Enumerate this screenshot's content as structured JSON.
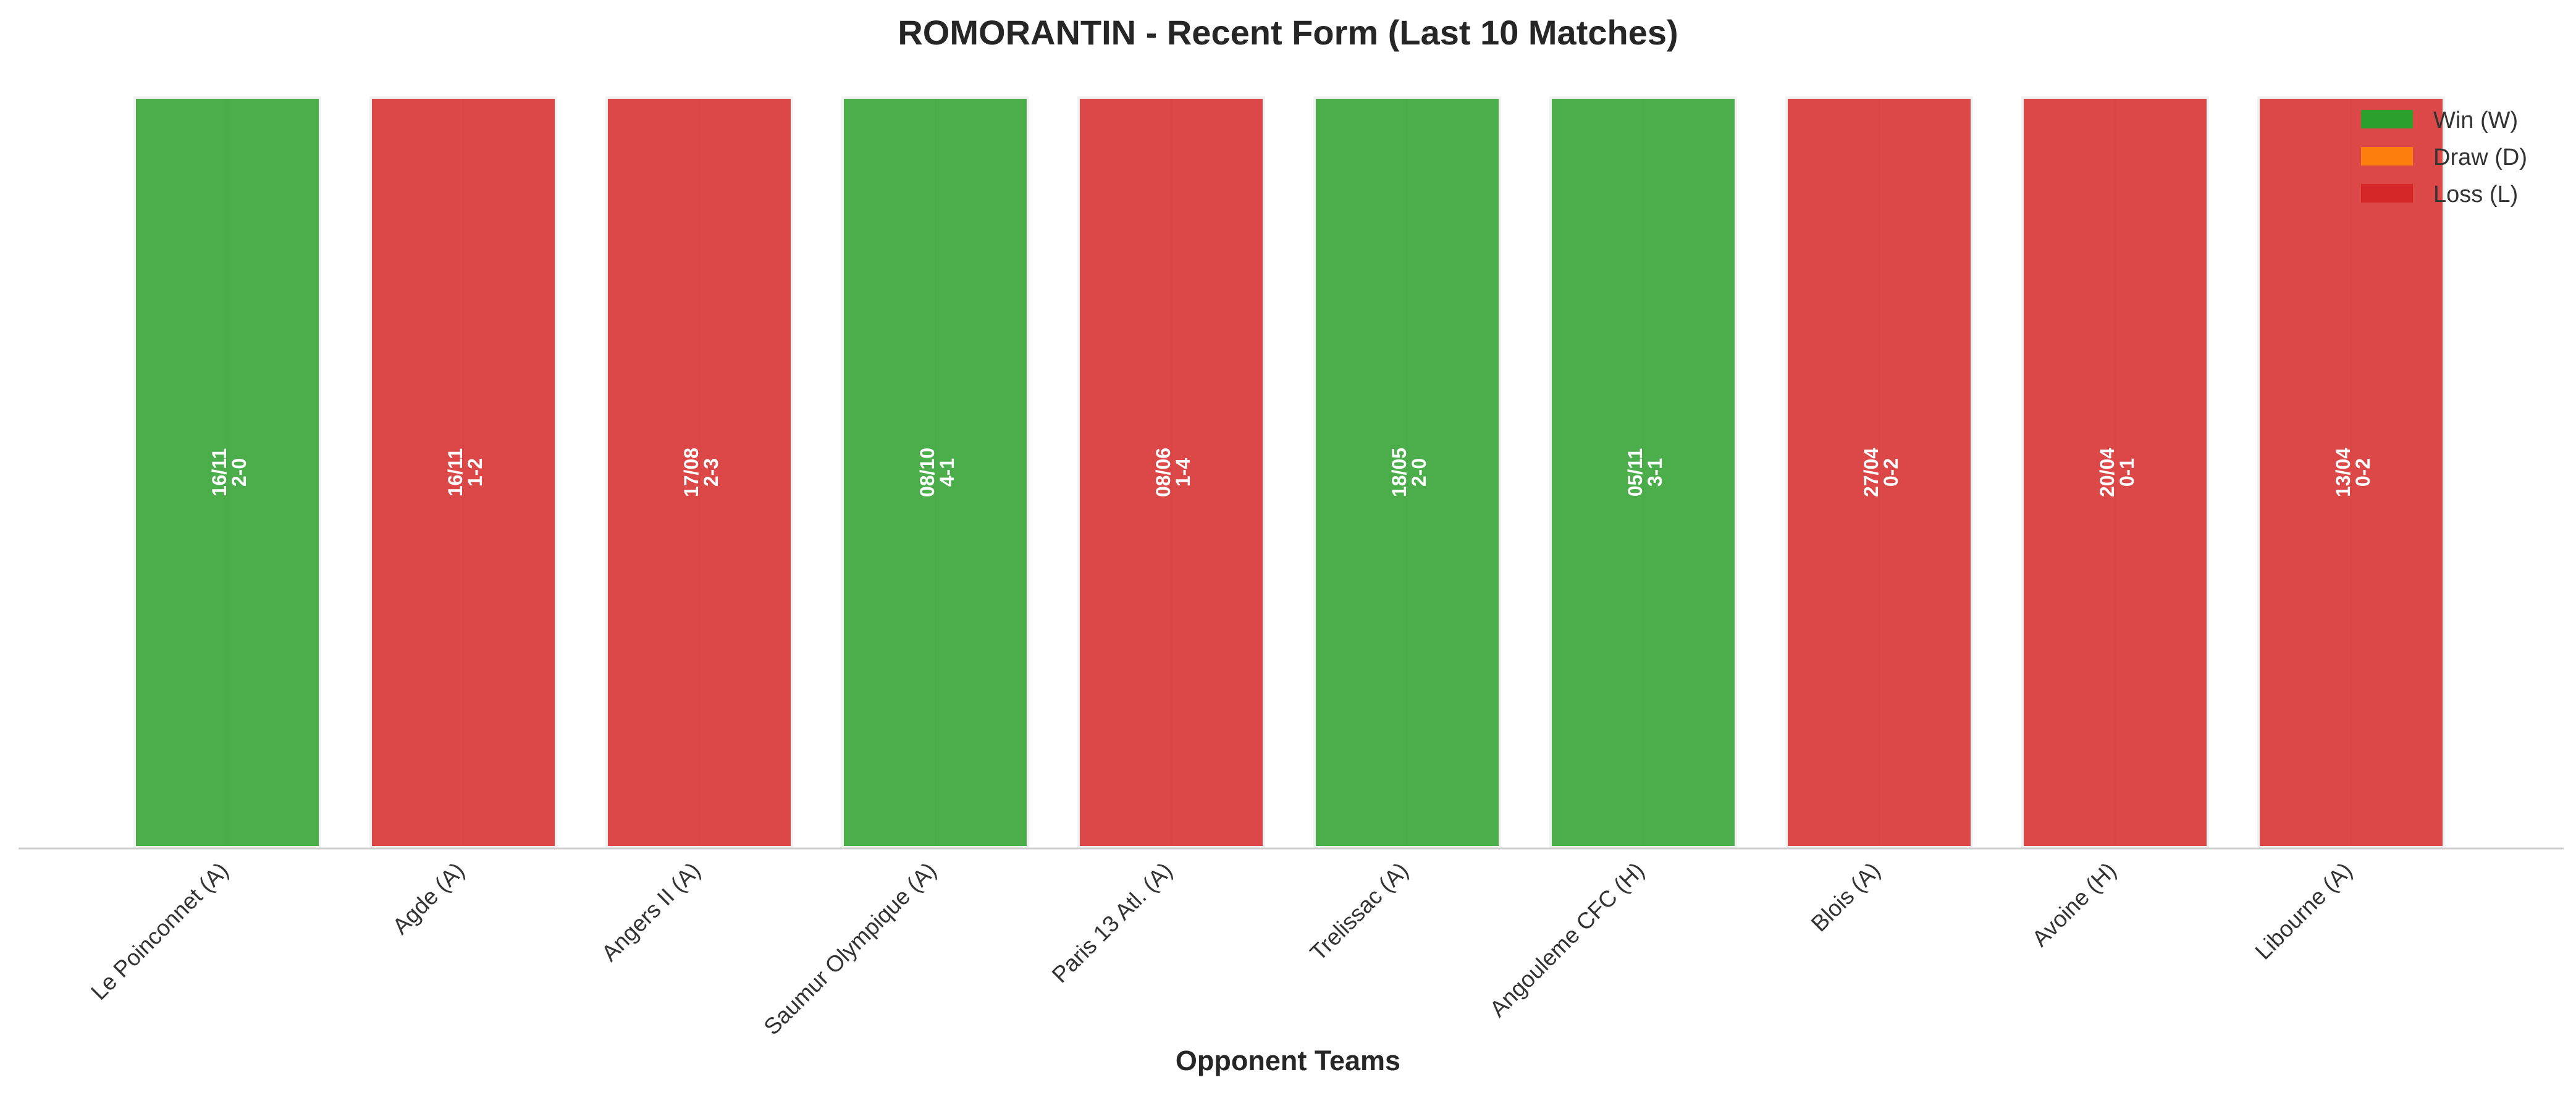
{
  "chart_data": {
    "type": "bar",
    "title": "ROMORANTIN - Recent Form (Last 10 Matches)",
    "xlabel": "Opponent Teams",
    "ylabel": "",
    "grid": "vertical lines only (faint)",
    "legend_position": "top-right",
    "colors": {
      "W": "#2ca02c",
      "D": "#ff7f0e",
      "L": "#d62728"
    },
    "legend": [
      {
        "key": "W",
        "label": "Win (W)"
      },
      {
        "key": "D",
        "label": "Draw (D)"
      },
      {
        "key": "L",
        "label": "Loss (L)"
      }
    ],
    "categories": [
      "Le Poinconnet (A)",
      "Agde (A)",
      "Angers II (A)",
      "Saumur Olympique (A)",
      "Paris 13 Atl. (A)",
      "Trelissac (A)",
      "Angouleme CFC (H)",
      "Blois (A)",
      "Avoine (H)",
      "Libourne (A)"
    ],
    "matches": [
      {
        "opponent": "Le Poinconnet (A)",
        "result": "W",
        "date": "16/11",
        "score": "2-0"
      },
      {
        "opponent": "Agde (A)",
        "result": "L",
        "date": "16/11",
        "score": "1-2"
      },
      {
        "opponent": "Angers II (A)",
        "result": "L",
        "date": "17/08",
        "score": "2-3"
      },
      {
        "opponent": "Saumur Olympique (A)",
        "result": "W",
        "date": "08/10",
        "score": "4-1"
      },
      {
        "opponent": "Paris 13 Atl. (A)",
        "result": "L",
        "date": "08/06",
        "score": "1-4"
      },
      {
        "opponent": "Trelissac (A)",
        "result": "W",
        "date": "18/05",
        "score": "2-0"
      },
      {
        "opponent": "Angouleme CFC (H)",
        "result": "W",
        "date": "05/11",
        "score": "3-1"
      },
      {
        "opponent": "Blois (A)",
        "result": "L",
        "date": "27/04",
        "score": "0-2"
      },
      {
        "opponent": "Avoine (H)",
        "result": "L",
        "date": "20/04",
        "score": "0-1"
      },
      {
        "opponent": "Libourne (A)",
        "result": "L",
        "date": "13/04",
        "score": "0-2"
      }
    ],
    "values": [
      1,
      1,
      1,
      1,
      1,
      1,
      1,
      1,
      1,
      1
    ],
    "ylim": [
      0,
      1
    ]
  }
}
